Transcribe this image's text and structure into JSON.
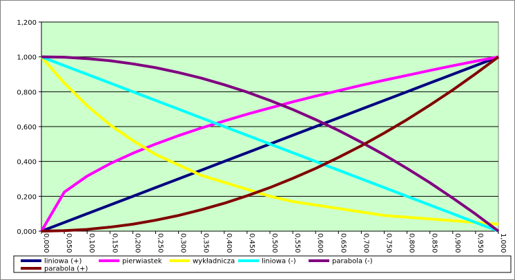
{
  "chart_data": {
    "type": "line",
    "categories": [
      "0,000",
      "0,050",
      "0,100",
      "0,150",
      "0,200",
      "0,250",
      "0,300",
      "0,350",
      "0,400",
      "0,450",
      "0,500",
      "0,550",
      "0,600",
      "0,650",
      "0,700",
      "0,750",
      "0,800",
      "0,850",
      "0,900",
      "0,950",
      "1,000"
    ],
    "series": [
      {
        "name": "liniowa (+)",
        "color": "#000080",
        "values": [
          0,
          0.05,
          0.1,
          0.15,
          0.2,
          0.25,
          0.3,
          0.35,
          0.4,
          0.45,
          0.5,
          0.55,
          0.6,
          0.65,
          0.7,
          0.75,
          0.8,
          0.85,
          0.9,
          0.95,
          1
        ]
      },
      {
        "name": "pierwiastek",
        "color": "#ff00ff",
        "values": [
          0,
          0.224,
          0.316,
          0.387,
          0.447,
          0.5,
          0.548,
          0.592,
          0.632,
          0.671,
          0.707,
          0.742,
          0.775,
          0.806,
          0.837,
          0.866,
          0.894,
          0.922,
          0.949,
          0.975,
          1
        ]
      },
      {
        "name": "wykładnicza",
        "color": "#ffff00",
        "values": [
          1,
          0.85,
          0.72,
          0.61,
          0.52,
          0.44,
          0.38,
          0.32,
          0.28,
          0.24,
          0.2,
          0.17,
          0.15,
          0.13,
          0.11,
          0.09,
          0.08,
          0.07,
          0.06,
          0.05,
          0.04
        ]
      },
      {
        "name": "liniowa (-)",
        "color": "#00ffff",
        "values": [
          1,
          0.95,
          0.9,
          0.85,
          0.8,
          0.75,
          0.7,
          0.65,
          0.6,
          0.55,
          0.5,
          0.45,
          0.4,
          0.35,
          0.3,
          0.25,
          0.2,
          0.15,
          0.1,
          0.05,
          0
        ]
      },
      {
        "name": "parabola (-)",
        "color": "#800080",
        "values": [
          1,
          0.998,
          0.99,
          0.978,
          0.96,
          0.938,
          0.91,
          0.878,
          0.84,
          0.798,
          0.75,
          0.698,
          0.64,
          0.578,
          0.51,
          0.438,
          0.36,
          0.278,
          0.19,
          0.098,
          0
        ]
      },
      {
        "name": "parabola (+)",
        "color": "#800000",
        "values": [
          0,
          0.003,
          0.01,
          0.023,
          0.04,
          0.063,
          0.09,
          0.123,
          0.16,
          0.203,
          0.25,
          0.303,
          0.36,
          0.423,
          0.49,
          0.563,
          0.64,
          0.723,
          0.81,
          0.903,
          1
        ]
      }
    ],
    "ylim": [
      0,
      1.2
    ],
    "yticks": [
      {
        "value": 0,
        "label": "0,000"
      },
      {
        "value": 0.2,
        "label": "0,200"
      },
      {
        "value": 0.4,
        "label": "0,400"
      },
      {
        "value": 0.6,
        "label": "0,600"
      },
      {
        "value": 0.8,
        "label": "0,800"
      },
      {
        "value": 1,
        "label": "1,000"
      },
      {
        "value": 1.2,
        "label": "1,200"
      }
    ],
    "grid": true,
    "legend": "bottom",
    "plot_background": "#ccffcc"
  }
}
